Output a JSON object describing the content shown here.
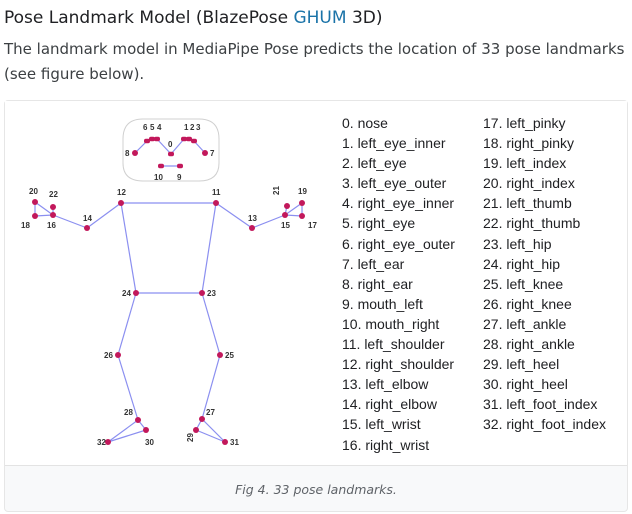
{
  "heading": {
    "prefix": "Pose Landmark Model (BlazePose ",
    "highlight": "GHUM",
    "suffix": " 3D)"
  },
  "intro": "The landmark model in MediaPipe Pose predicts the location of 33 pose landmarks (see figure below).",
  "colors": {
    "link": "#1a73a8",
    "skeleton": "#8b8ff0",
    "joint": "#c2185b"
  },
  "figure": {
    "labels": {
      "n0": "0",
      "n1": "1",
      "n2": "2",
      "n3": "3",
      "n4": "4",
      "n5": "5",
      "n6": "6",
      "n7": "7",
      "n8": "8",
      "n9": "9",
      "n10": "10",
      "n11": "11",
      "n12": "12",
      "n13": "13",
      "n14": "14",
      "n15": "15",
      "n16": "16",
      "n17": "17",
      "n18": "18",
      "n19": "19",
      "n20": "20",
      "n21": "21",
      "n22": "22",
      "n23": "23",
      "n24": "24",
      "n25": "25",
      "n26": "26",
      "n27": "27",
      "n28": "28",
      "n29": "29",
      "n30": "30",
      "n31": "31",
      "n32": "32"
    },
    "caption": "Fig 4. 33 pose landmarks."
  },
  "landmarks": [
    "0. nose",
    "1. left_eye_inner",
    "2. left_eye",
    "3. left_eye_outer",
    "4. right_eye_inner",
    "5. right_eye",
    "6. right_eye_outer",
    "7. left_ear",
    "8. right_ear",
    "9. mouth_left",
    "10. mouth_right",
    "11. left_shoulder",
    "12. right_shoulder",
    "13. left_elbow",
    "14. right_elbow",
    "15. left_wrist",
    "16. right_wrist",
    "17. left_pinky",
    "18. right_pinky",
    "19. left_index",
    "20. right_index",
    "21. left_thumb",
    "22. right_thumb",
    "23. left_hip",
    "24. right_hip",
    "25. left_knee",
    "26. right_knee",
    "27. left_ankle",
    "28. right_ankle",
    "29. left_heel",
    "30. right_heel",
    "31. left_foot_index",
    "32. right_foot_index"
  ]
}
